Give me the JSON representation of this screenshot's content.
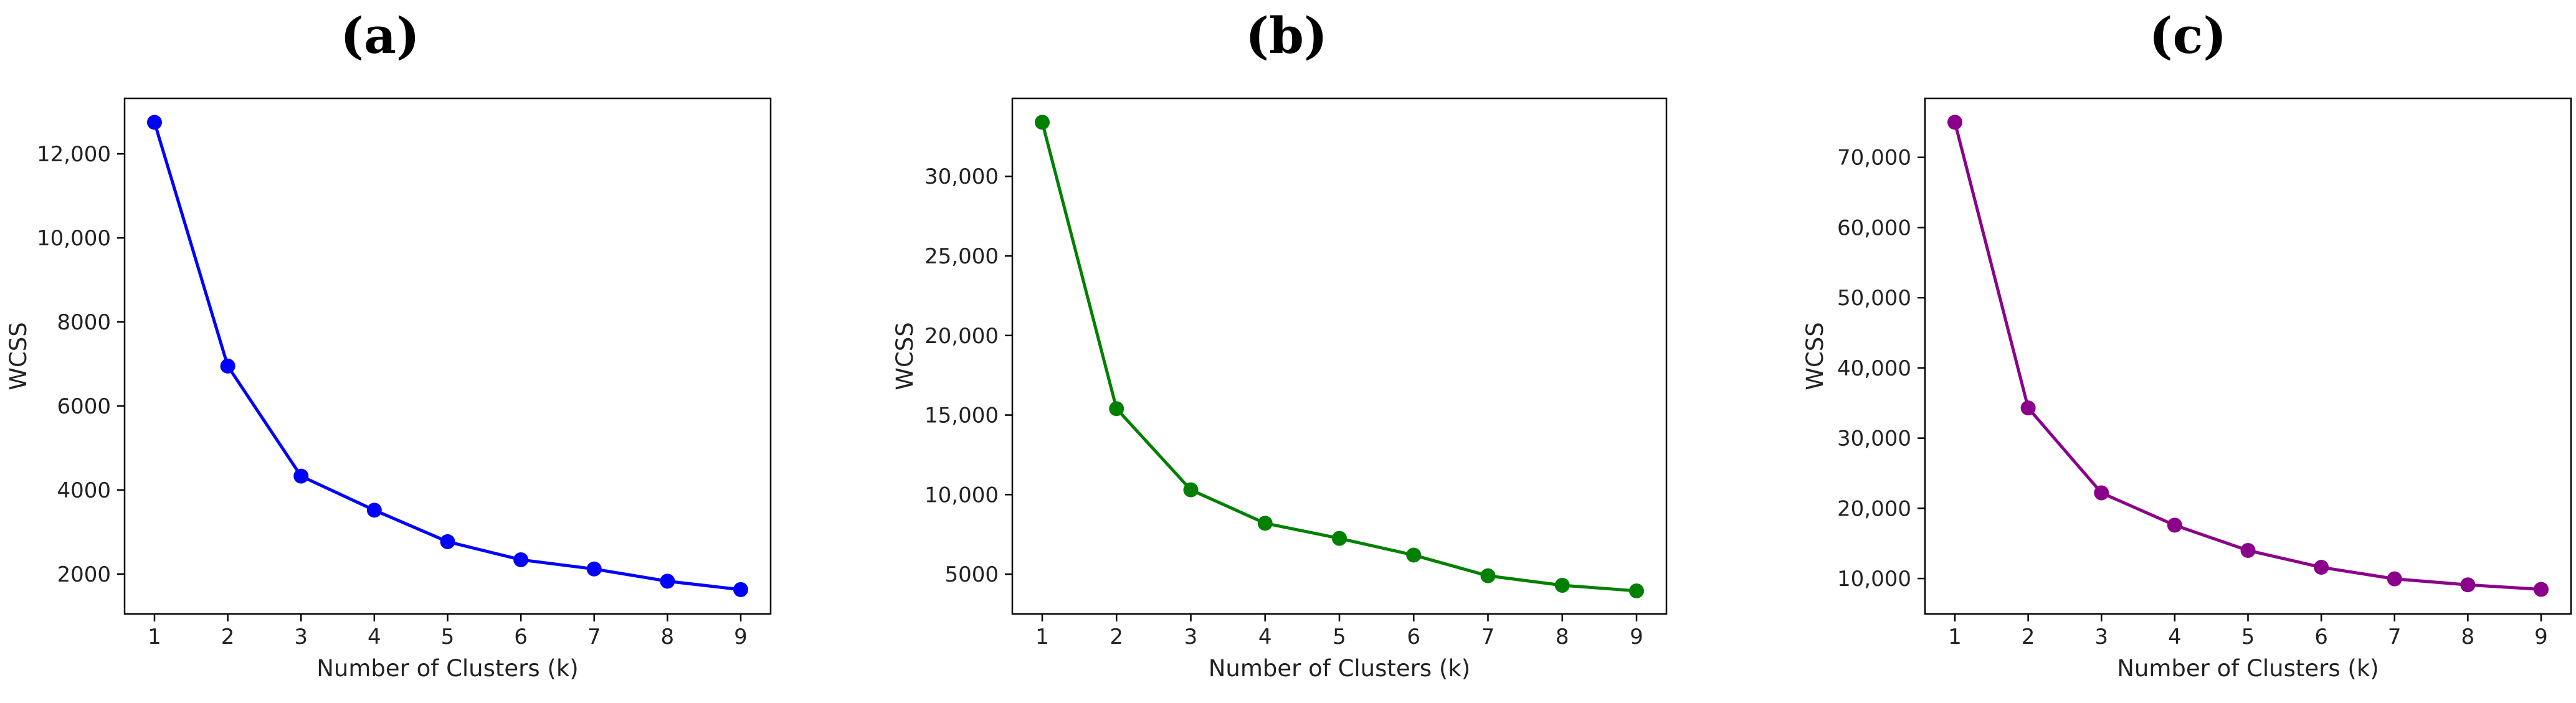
{
  "chart_data": [
    {
      "type": "line",
      "panel_label": "(a)",
      "xlabel": "Number of Clusters (k)",
      "ylabel": "WCSS",
      "x": [
        1,
        2,
        3,
        4,
        5,
        6,
        7,
        8,
        9
      ],
      "xticks": [
        "1",
        "2",
        "3",
        "4",
        "5",
        "6",
        "7",
        "8",
        "9"
      ],
      "series": [
        {
          "values": [
            12750,
            6950,
            4330,
            3520,
            2770,
            2340,
            2120,
            1830,
            1630
          ],
          "color": "#0000ff",
          "marker": "circle"
        }
      ],
      "ylim": [
        1050,
        13320
      ],
      "yticks": [
        {
          "value": 2000,
          "label": "2000"
        },
        {
          "value": 4000,
          "label": "4000"
        },
        {
          "value": 6000,
          "label": "6000"
        },
        {
          "value": 8000,
          "label": "8000"
        },
        {
          "value": 10000,
          "label": "10,000"
        },
        {
          "value": 12000,
          "label": "12,000"
        }
      ],
      "grid": false
    },
    {
      "type": "line",
      "panel_label": "(b)",
      "xlabel": "Number of Clusters (k)",
      "ylabel": "WCSS",
      "x": [
        1,
        2,
        3,
        4,
        5,
        6,
        7,
        8,
        9
      ],
      "xticks": [
        "1",
        "2",
        "3",
        "4",
        "5",
        "6",
        "7",
        "8",
        "9"
      ],
      "series": [
        {
          "values": [
            33400,
            15400,
            10300,
            8200,
            7250,
            6200,
            4900,
            4300,
            3950
          ],
          "color": "#008000",
          "marker": "circle"
        }
      ],
      "ylim": [
        2500,
        34900
      ],
      "yticks": [
        {
          "value": 5000,
          "label": "5000"
        },
        {
          "value": 10000,
          "label": "10,000"
        },
        {
          "value": 15000,
          "label": "15,000"
        },
        {
          "value": 20000,
          "label": "20,000"
        },
        {
          "value": 25000,
          "label": "25,000"
        },
        {
          "value": 30000,
          "label": "30,000"
        }
      ],
      "grid": false
    },
    {
      "type": "line",
      "panel_label": "(c)",
      "xlabel": "Number of Clusters (k)",
      "ylabel": "WCSS",
      "x": [
        1,
        2,
        3,
        4,
        5,
        6,
        7,
        8,
        9
      ],
      "xticks": [
        "1",
        "2",
        "3",
        "4",
        "5",
        "6",
        "7",
        "8",
        "9"
      ],
      "series": [
        {
          "values": [
            75000,
            34300,
            22200,
            17600,
            14000,
            11600,
            9950,
            9100,
            8450
          ],
          "color": "#8b008b",
          "marker": "circle"
        }
      ],
      "ylim": [
        4950,
        78400
      ],
      "yticks": [
        {
          "value": 10000,
          "label": "10,000"
        },
        {
          "value": 20000,
          "label": "20,000"
        },
        {
          "value": 30000,
          "label": "30,000"
        },
        {
          "value": 40000,
          "label": "40,000"
        },
        {
          "value": 50000,
          "label": "50,000"
        },
        {
          "value": 60000,
          "label": "60,000"
        },
        {
          "value": 70000,
          "label": "70,000"
        }
      ],
      "grid": false
    }
  ]
}
